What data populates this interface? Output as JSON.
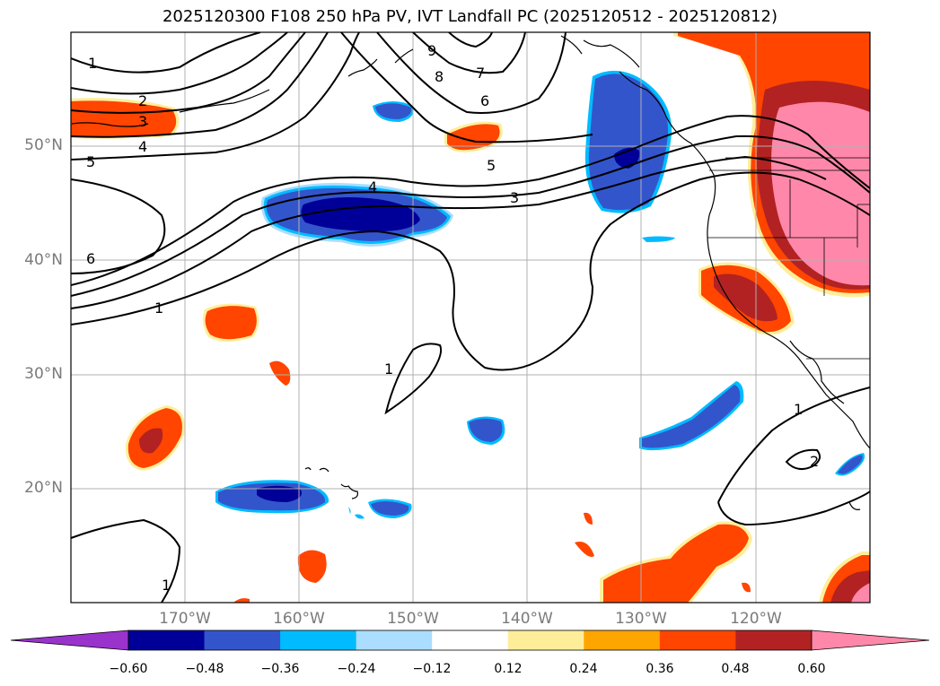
{
  "title": "2025120300 F108 250 hPa PV, IVT Landfall PC (2025120512 - 2025120812)",
  "map": {
    "extent_lon": [
      -180,
      -110
    ],
    "extent_lat": [
      10,
      60
    ],
    "lat_labels": [
      "50°N",
      "40°N",
      "30°N",
      "20°N"
    ],
    "lon_labels": [
      "170°W",
      "160°W",
      "150°W",
      "140°W",
      "130°W",
      "120°W"
    ],
    "grid": true
  },
  "contour_labels": [
    "1",
    "2",
    "3",
    "4",
    "5",
    "6",
    "1",
    "4",
    "5",
    "3",
    "6",
    "7",
    "8",
    "9",
    "1",
    "1",
    "1",
    "2"
  ],
  "colorbar": {
    "ticks": [
      "−0.60",
      "−0.48",
      "−0.36",
      "−0.24",
      "−0.12",
      "0.12",
      "0.24",
      "0.36",
      "0.48",
      "0.60"
    ],
    "colors": [
      "#9933cc",
      "#000099",
      "#3355cc",
      "#00bbff",
      "#aaddff",
      "#ffffff",
      "#ffee99",
      "#ffa500",
      "#ff4500",
      "#b22222",
      "#ff88aa"
    ]
  }
}
